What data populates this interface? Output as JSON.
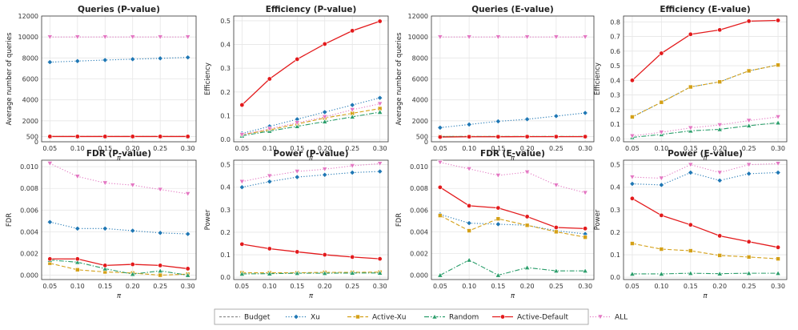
{
  "series_styles": [
    {
      "name": "Budget",
      "color": "#8c8c8c",
      "dash": "3,2",
      "marker": "none"
    },
    {
      "name": "Xu",
      "color": "#1f77b4",
      "dash": "1.2,2.2",
      "marker": "diamond"
    },
    {
      "name": "Active-Xu",
      "color": "#d4a017",
      "dash": "5,2.5",
      "marker": "square"
    },
    {
      "name": "Random",
      "color": "#2a9d6a",
      "dash": "6,2,1.5,2",
      "marker": "triangle"
    },
    {
      "name": "Active-Default",
      "color": "#e31a1c",
      "dash": "",
      "marker": "circle"
    },
    {
      "name": "ALL",
      "color": "#e377c2",
      "dash": "1.2,2.2",
      "marker": "triangle-down"
    }
  ],
  "chart_data": [
    {
      "type": "line",
      "title": "Queries (P-value)",
      "xlabel": "π",
      "ylabel": "Average number of queries",
      "x": [
        0.05,
        0.1,
        0.15,
        0.2,
        0.25,
        0.3
      ],
      "ylim": [
        0,
        12000
      ],
      "yticks": [
        0,
        500,
        2000,
        4000,
        6000,
        8000,
        10000,
        12000
      ],
      "series": [
        {
          "name": "Budget",
          "values": [
            500,
            500,
            500,
            500,
            500,
            500
          ]
        },
        {
          "name": "Xu",
          "values": [
            7600,
            7700,
            7800,
            7880,
            7960,
            8050
          ]
        },
        {
          "name": "Active-Xu",
          "values": [
            500,
            500,
            500,
            500,
            500,
            500
          ]
        },
        {
          "name": "Random",
          "values": [
            500,
            500,
            500,
            500,
            500,
            500
          ]
        },
        {
          "name": "Active-Default",
          "values": [
            500,
            500,
            500,
            500,
            500,
            500
          ]
        },
        {
          "name": "ALL",
          "values": [
            10000,
            10000,
            10000,
            10000,
            10000,
            10000
          ]
        }
      ]
    },
    {
      "type": "line",
      "title": "Efficiency (P-value)",
      "xlabel": "π",
      "ylabel": "Efficiency",
      "x": [
        0.05,
        0.1,
        0.15,
        0.2,
        0.25,
        0.3
      ],
      "ylim": [
        -0.01,
        0.52
      ],
      "yticks": [
        0.0,
        0.1,
        0.2,
        0.3,
        0.4,
        0.5
      ],
      "series": [
        {
          "name": "Xu",
          "values": [
            0.025,
            0.055,
            0.085,
            0.115,
            0.145,
            0.175
          ]
        },
        {
          "name": "Active-Xu",
          "values": [
            0.02,
            0.04,
            0.065,
            0.09,
            0.11,
            0.13
          ]
        },
        {
          "name": "Random",
          "values": [
            0.015,
            0.035,
            0.055,
            0.075,
            0.095,
            0.115
          ]
        },
        {
          "name": "Active-Default",
          "values": [
            0.145,
            0.255,
            0.338,
            0.402,
            0.458,
            0.498
          ]
        },
        {
          "name": "ALL",
          "values": [
            0.02,
            0.045,
            0.07,
            0.095,
            0.125,
            0.15
          ]
        }
      ]
    },
    {
      "type": "line",
      "title": "Queries (E-value)",
      "xlabel": "π",
      "ylabel": "Average number of queries",
      "x": [
        0.05,
        0.1,
        0.15,
        0.2,
        0.25,
        0.3
      ],
      "ylim": [
        0,
        12000
      ],
      "yticks": [
        0,
        500,
        2000,
        4000,
        6000,
        8000,
        10000,
        12000
      ],
      "series": [
        {
          "name": "Budget",
          "values": [
            500,
            500,
            500,
            500,
            500,
            500
          ]
        },
        {
          "name": "Xu",
          "values": [
            1350,
            1650,
            1950,
            2150,
            2450,
            2750
          ]
        },
        {
          "name": "Active-Xu",
          "values": [
            500,
            500,
            500,
            500,
            500,
            500
          ]
        },
        {
          "name": "Random",
          "values": [
            500,
            500,
            500,
            500,
            500,
            500
          ]
        },
        {
          "name": "Active-Default",
          "values": [
            450,
            480,
            480,
            490,
            490,
            490
          ]
        },
        {
          "name": "ALL",
          "values": [
            10000,
            10000,
            10000,
            10000,
            10000,
            10000
          ]
        }
      ]
    },
    {
      "type": "line",
      "title": "Efficiency (E-value)",
      "xlabel": "π",
      "ylabel": "Efficiency",
      "x": [
        0.05,
        0.1,
        0.15,
        0.2,
        0.25,
        0.3
      ],
      "ylim": [
        -0.02,
        0.84
      ],
      "yticks": [
        0.0,
        0.1,
        0.2,
        0.3,
        0.4,
        0.5,
        0.6,
        0.7,
        0.8
      ],
      "series": [
        {
          "name": "Xu",
          "values": [
            0.15,
            0.25,
            0.355,
            0.39,
            0.465,
            0.505
          ]
        },
        {
          "name": "Active-Xu",
          "values": [
            0.15,
            0.25,
            0.355,
            0.39,
            0.465,
            0.505
          ]
        },
        {
          "name": "Random",
          "values": [
            0.01,
            0.03,
            0.055,
            0.065,
            0.09,
            0.11
          ]
        },
        {
          "name": "Active-Default",
          "values": [
            0.4,
            0.585,
            0.715,
            0.745,
            0.805,
            0.81
          ]
        },
        {
          "name": "ALL",
          "values": [
            0.02,
            0.045,
            0.075,
            0.095,
            0.125,
            0.15
          ]
        }
      ]
    },
    {
      "type": "line",
      "title": "FDR (P-value)",
      "xlabel": "π",
      "ylabel": "FDR",
      "x": [
        0.05,
        0.1,
        0.15,
        0.2,
        0.25,
        0.3
      ],
      "ylim": [
        -0.0004,
        0.0106
      ],
      "yticks": [
        0.0,
        0.002,
        0.004,
        0.006,
        0.008,
        0.01
      ],
      "series": [
        {
          "name": "Xu",
          "values": [
            0.0049,
            0.0043,
            0.0043,
            0.0041,
            0.0039,
            0.0038
          ]
        },
        {
          "name": "Active-Xu",
          "values": [
            0.0011,
            0.0005,
            0.0003,
            0.0002,
            0.0,
            0.0001
          ]
        },
        {
          "name": "Random",
          "values": [
            0.0014,
            0.0012,
            0.0006,
            0.0001,
            0.0004,
            0.0
          ]
        },
        {
          "name": "Active-Default",
          "values": [
            0.0015,
            0.0015,
            0.0009,
            0.001,
            0.0009,
            0.0006
          ]
        },
        {
          "name": "ALL",
          "values": [
            0.0103,
            0.0091,
            0.0085,
            0.0083,
            0.0079,
            0.0075
          ]
        }
      ]
    },
    {
      "type": "line",
      "title": "Power (P-value)",
      "xlabel": "π",
      "ylabel": "Power",
      "x": [
        0.05,
        0.1,
        0.15,
        0.2,
        0.25,
        0.3
      ],
      "ylim": [
        -0.01,
        0.52
      ],
      "yticks": [
        0.0,
        0.1,
        0.2,
        0.3,
        0.4,
        0.5
      ],
      "series": [
        {
          "name": "Xu",
          "values": [
            0.4,
            0.425,
            0.445,
            0.455,
            0.465,
            0.47
          ]
        },
        {
          "name": "Active-Xu",
          "values": [
            0.02,
            0.02,
            0.02,
            0.022,
            0.022,
            0.023
          ]
        },
        {
          "name": "Random",
          "values": [
            0.015,
            0.016,
            0.018,
            0.018,
            0.019,
            0.019
          ]
        },
        {
          "name": "Active-Default",
          "values": [
            0.147,
            0.127,
            0.113,
            0.1,
            0.09,
            0.082
          ]
        },
        {
          "name": "ALL",
          "values": [
            0.425,
            0.45,
            0.47,
            0.48,
            0.495,
            0.505
          ]
        }
      ]
    },
    {
      "type": "line",
      "title": "FDR (E-value)",
      "xlabel": "π",
      "ylabel": "FDR",
      "x": [
        0.05,
        0.1,
        0.15,
        0.2,
        0.25,
        0.3
      ],
      "ylim": [
        -0.0004,
        0.0106
      ],
      "yticks": [
        0.0,
        0.002,
        0.004,
        0.006,
        0.008,
        0.01
      ],
      "series": [
        {
          "name": "Xu",
          "values": [
            0.0056,
            0.0048,
            0.0047,
            0.0046,
            0.0041,
            0.0038
          ]
        },
        {
          "name": "Active-Xu",
          "values": [
            0.0055,
            0.0041,
            0.0052,
            0.0046,
            0.004,
            0.0035
          ]
        },
        {
          "name": "Random",
          "values": [
            0.0,
            0.0014,
            0.0,
            0.0007,
            0.0004,
            0.0004
          ]
        },
        {
          "name": "Active-Default",
          "values": [
            0.0081,
            0.0064,
            0.0062,
            0.0054,
            0.0044,
            0.0043
          ]
        },
        {
          "name": "ALL",
          "values": [
            0.0104,
            0.0098,
            0.0092,
            0.0095,
            0.0083,
            0.0076
          ]
        }
      ]
    },
    {
      "type": "line",
      "title": "Power (E-value)",
      "xlabel": "π",
      "ylabel": "Power",
      "x": [
        0.05,
        0.1,
        0.15,
        0.2,
        0.25,
        0.3
      ],
      "ylim": [
        -0.01,
        0.52
      ],
      "yticks": [
        0.0,
        0.1,
        0.2,
        0.3,
        0.4,
        0.5
      ],
      "series": [
        {
          "name": "Xu",
          "values": [
            0.415,
            0.41,
            0.465,
            0.43,
            0.46,
            0.465
          ]
        },
        {
          "name": "Active-Xu",
          "values": [
            0.15,
            0.125,
            0.118,
            0.097,
            0.09,
            0.082
          ]
        },
        {
          "name": "Random",
          "values": [
            0.015,
            0.015,
            0.018,
            0.016,
            0.018,
            0.018
          ]
        },
        {
          "name": "Active-Default",
          "values": [
            0.35,
            0.275,
            0.233,
            0.184,
            0.158,
            0.133
          ]
        },
        {
          "name": "ALL",
          "values": [
            0.445,
            0.44,
            0.5,
            0.465,
            0.5,
            0.505
          ]
        }
      ]
    }
  ]
}
